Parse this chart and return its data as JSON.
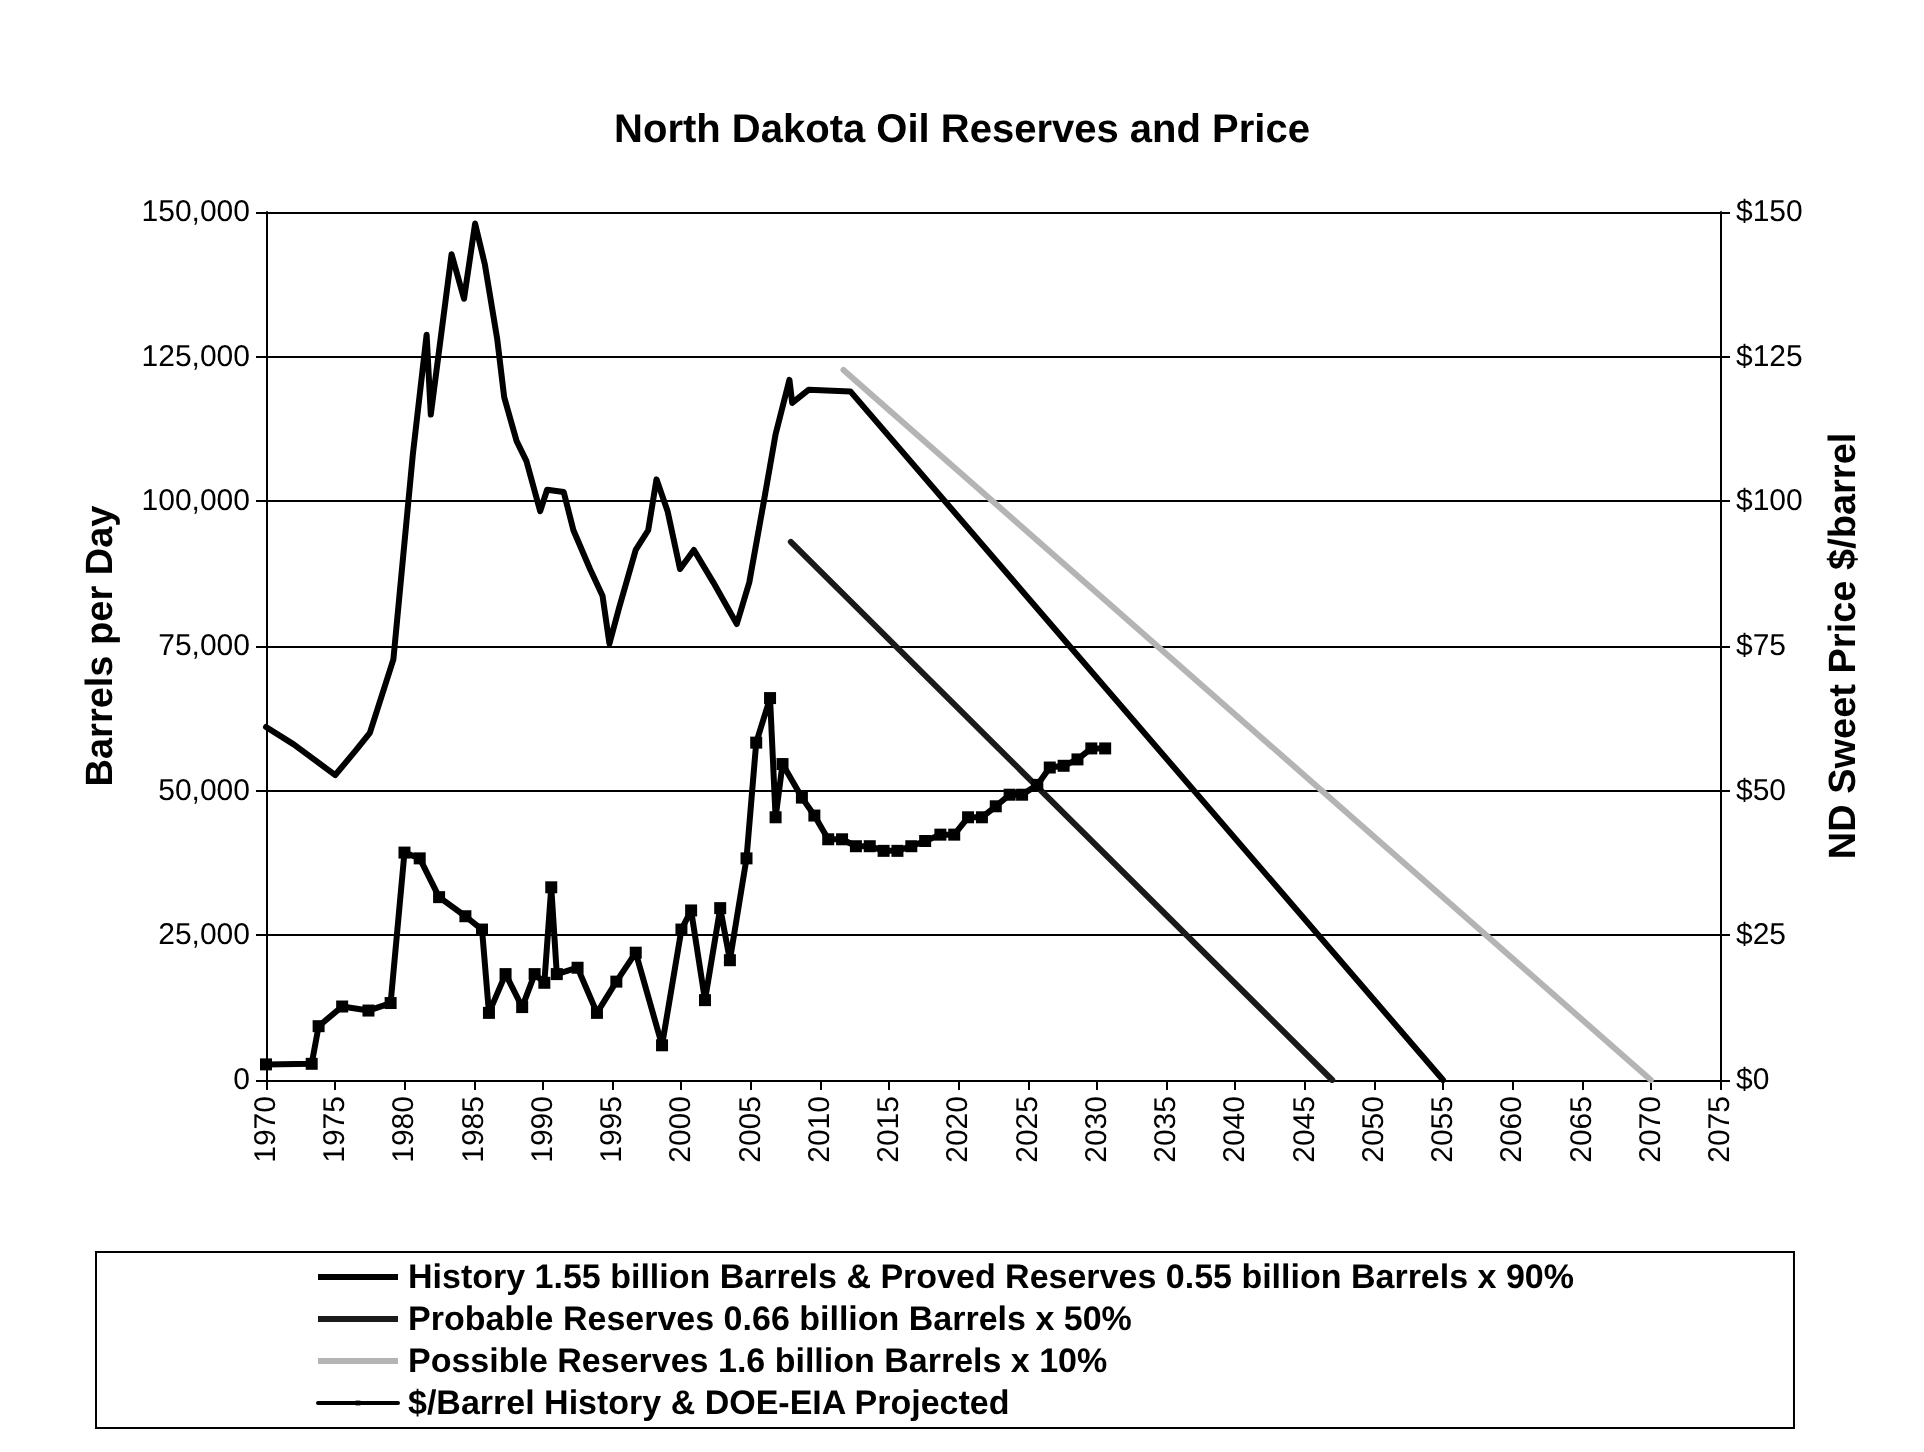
{
  "chart_data": {
    "type": "line",
    "title": "North Dakota Oil Reserves and Price",
    "ylabel": "Barrels per Day",
    "y2label": "ND Sweet Price $/barrel",
    "xlim": [
      1970,
      2075
    ],
    "xticks": [
      1970,
      1975,
      1980,
      1985,
      1990,
      1995,
      2000,
      2005,
      2010,
      2015,
      2020,
      2025,
      2030,
      2035,
      2040,
      2045,
      2050,
      2055,
      2060,
      2065,
      2070,
      2075
    ],
    "ylim": [
      0,
      150000
    ],
    "yticks": [
      {
        "value": 0,
        "label": "0"
      },
      {
        "value": 25000,
        "label": "25,000"
      },
      {
        "value": 50000,
        "label": "50,000"
      },
      {
        "value": 75000,
        "label": "75,000"
      },
      {
        "value": 100000,
        "label": "100,000"
      },
      {
        "value": 125000,
        "label": "125,000"
      },
      {
        "value": 150000,
        "label": "150,000"
      }
    ],
    "y2lim": [
      0,
      150
    ],
    "y2ticks": [
      {
        "value": 0,
        "label": "$0"
      },
      {
        "value": 25,
        "label": "$25"
      },
      {
        "value": 50,
        "label": "$50"
      },
      {
        "value": 75,
        "label": "$75"
      },
      {
        "value": 100,
        "label": "$100"
      },
      {
        "value": 125,
        "label": "$125"
      },
      {
        "value": 150,
        "label": "$150"
      }
    ],
    "grid": "y",
    "legend": "bottom",
    "marker": "none",
    "line_style": "solid",
    "series": [
      {
        "name": "History 1.55 billion Barrels & Proved Reserves 0.55 billion Barrels x 90%",
        "color": "#000000",
        "x": [
          1970,
          1972,
          1975,
          1976.5,
          1977.5,
          1979.2,
          1980.6,
          1981.6,
          1981.9,
          1983.4,
          1984.3,
          1985.1,
          1985.8,
          1986.7,
          1987.2,
          1988.1,
          1988.8,
          1989.8,
          1990.3,
          1991.5,
          1992.2,
          1993.4,
          1994.3,
          1994.8,
          1995.5,
          1996.7,
          1997.6,
          1998.2,
          1999,
          1999.9,
          2000.9,
          2002.3,
          2004,
          2004.9,
          2005.9,
          2006.8,
          2007.8,
          2008,
          2009.2,
          2012.2,
          2055
        ],
        "values": [
          61000,
          58000,
          52700,
          57000,
          60000,
          72700,
          108000,
          128800,
          115000,
          142700,
          135000,
          148000,
          141000,
          128000,
          118000,
          110400,
          107000,
          98300,
          102000,
          101600,
          95000,
          88300,
          83700,
          75400,
          81600,
          91600,
          95000,
          103800,
          98300,
          88300,
          91600,
          86000,
          78800,
          86000,
          99300,
          111600,
          121000,
          117000,
          119300,
          119000,
          0
        ]
      },
      {
        "name": "Probable Reserves 0.66 billion Barrels x 50%",
        "color": "#1a1a1a",
        "x": [
          2007.9,
          2047
        ],
        "values": [
          93000,
          0
        ]
      },
      {
        "name": "Possible Reserves 1.6 billion Barrels x 10%",
        "color": "#b4b4b4",
        "x": [
          2011.7,
          2070
        ],
        "values": [
          122700,
          0
        ]
      },
      {
        "name": "$/Barrel History & DOE-EIA Projected",
        "color": "#000000",
        "axis": "y2",
        "marker": "square",
        "x": [
          1970,
          1973.3,
          1973.8,
          1975.5,
          1977.4,
          1979,
          1980,
          1981.1,
          1982.5,
          1984.4,
          1985.6,
          1986.1,
          1987.3,
          1988.5,
          1989.4,
          1990.1,
          1990.6,
          1991,
          1992.5,
          1993.9,
          1995.3,
          1996.7,
          1998.6,
          2000,
          2000.7,
          2001.7,
          2002.8,
          2003.5,
          2004.7,
          2005.4,
          2006.4,
          2006.8,
          2007.3,
          2008.7,
          2009.6,
          2010.6,
          2011.6,
          2012.6,
          2013.6,
          2014.6,
          2015.6,
          2016.6,
          2017.6,
          2018.7,
          2019.7,
          2020.7,
          2021.7,
          2022.7,
          2023.7,
          2024.6,
          2025.7,
          2026.6,
          2027.6,
          2028.6,
          2029.6,
          2030.6
        ],
        "values": [
          2.7,
          2.8,
          9.3,
          12.7,
          12,
          13.3,
          39.3,
          38.3,
          31.6,
          28.3,
          26,
          11.6,
          18.3,
          12.6,
          18.3,
          16.8,
          33.3,
          18.3,
          19.4,
          11.6,
          17,
          22,
          6,
          26,
          29.3,
          13.8,
          29.7,
          20.7,
          38.3,
          58.3,
          66,
          45.4,
          54.6,
          48.8,
          45.7,
          41.6,
          41.6,
          40.4,
          40.4,
          39.6,
          39.6,
          40.4,
          41.3,
          42.4,
          42.4,
          45.4,
          45.4,
          47.3,
          49.3,
          49.3,
          51,
          54,
          54.3,
          55.4,
          57.3,
          57.3
        ]
      }
    ]
  }
}
